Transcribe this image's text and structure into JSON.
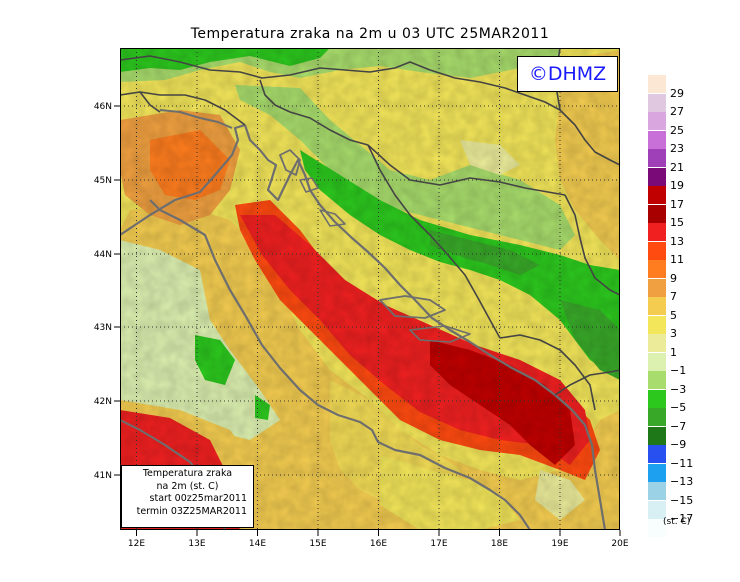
{
  "title": "Temperatura zraka na 2m u 03 UTC 25MAR2011",
  "logo_text": "©DHMZ",
  "infobox": {
    "line1": "Temperatura zraka",
    "line2": "na 2m (st. C)",
    "line3": "start 00z25mar2011",
    "line4": "termin 03Z25MAR2011"
  },
  "axes": {
    "x_ticks": [
      "12E",
      "13E",
      "14E",
      "15E",
      "16E",
      "17E",
      "18E",
      "19E",
      "20E"
    ],
    "y_ticks": [
      "46N",
      "45N",
      "44N",
      "43N",
      "42N",
      "41N"
    ]
  },
  "legend": {
    "unit": "(st. C)",
    "labels": [
      "29",
      "27",
      "25",
      "23",
      "21",
      "19",
      "17",
      "15",
      "13",
      "11",
      "9",
      "7",
      "5",
      "3",
      "1",
      "−1",
      "−3",
      "−5",
      "−7",
      "−9",
      "−11",
      "−13",
      "−15",
      "−17"
    ],
    "colors": [
      "#fce7d5",
      "#dfc8e0",
      "#d9a6e0",
      "#c870d8",
      "#a040b8",
      "#7a0a78",
      "#c00000",
      "#a80000",
      "#f02020",
      "#ff4a10",
      "#ff7d1e",
      "#f0a040",
      "#f3cc50",
      "#f3e65a",
      "#ebeb9a",
      "#dcf0b0",
      "#a8dc6c",
      "#2cc81e",
      "#38a828",
      "#1e7818",
      "#2850f0",
      "#1ea0f0",
      "#9bd2e6",
      "#d8f0f4",
      "#f8fdfd"
    ]
  },
  "colors": {
    "coast": "#6e6e6e",
    "border": "#444444",
    "grid": "#333333"
  }
}
